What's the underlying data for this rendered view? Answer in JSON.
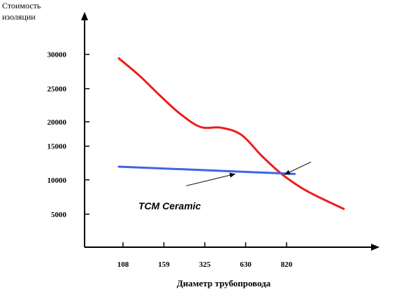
{
  "chart_data": {
    "type": "line",
    "ylabel_lines": [
      "Стоимость",
      "изоляции"
    ],
    "xlabel": "Диаметр трубопровода",
    "x_categories": [
      "108",
      "159",
      "325",
      "630",
      "820"
    ],
    "y_ticks": [
      "30000",
      "25000",
      "20000",
      "15000",
      "10000",
      "5000"
    ],
    "y_tick_values": [
      30000,
      25000,
      20000,
      15000,
      10000,
      5000
    ],
    "y_tick_gridvalues": [
      29200,
      24000,
      19000,
      15300,
      10200,
      5000
    ],
    "ylim": [
      0,
      35000
    ],
    "series": [
      {
        "color": "#ee1c1c",
        "points": [
          {
            "x": 0.0,
            "y": 28600
          },
          {
            "x": 0.5,
            "y": 26000
          },
          {
            "x": 1.0,
            "y": 23000
          },
          {
            "x": 1.5,
            "y": 20200
          },
          {
            "x": 2.0,
            "y": 18200
          },
          {
            "x": 2.5,
            "y": 18100
          },
          {
            "x": 3.0,
            "y": 17000
          },
          {
            "x": 3.5,
            "y": 13800
          },
          {
            "x": 4.0,
            "y": 11000
          },
          {
            "x": 4.6,
            "y": 8500
          },
          {
            "x": 5.5,
            "y": 5800
          }
        ]
      },
      {
        "color": "#3b66e6",
        "points": [
          {
            "x": 0.0,
            "y": 12200
          },
          {
            "x": 4.3,
            "y": 11100
          }
        ]
      }
    ],
    "annotation": "TCM Ceramic",
    "arrows": [
      {
        "from": {
          "x": 1.65,
          "y": 9300
        },
        "to": {
          "x": 2.85,
          "y": 11100
        }
      },
      {
        "from": {
          "x": 4.7,
          "y": 12900
        },
        "to": {
          "x": 4.05,
          "y": 11000
        }
      }
    ],
    "colors": {
      "axis": "#000000",
      "arrow": "#000000"
    }
  }
}
